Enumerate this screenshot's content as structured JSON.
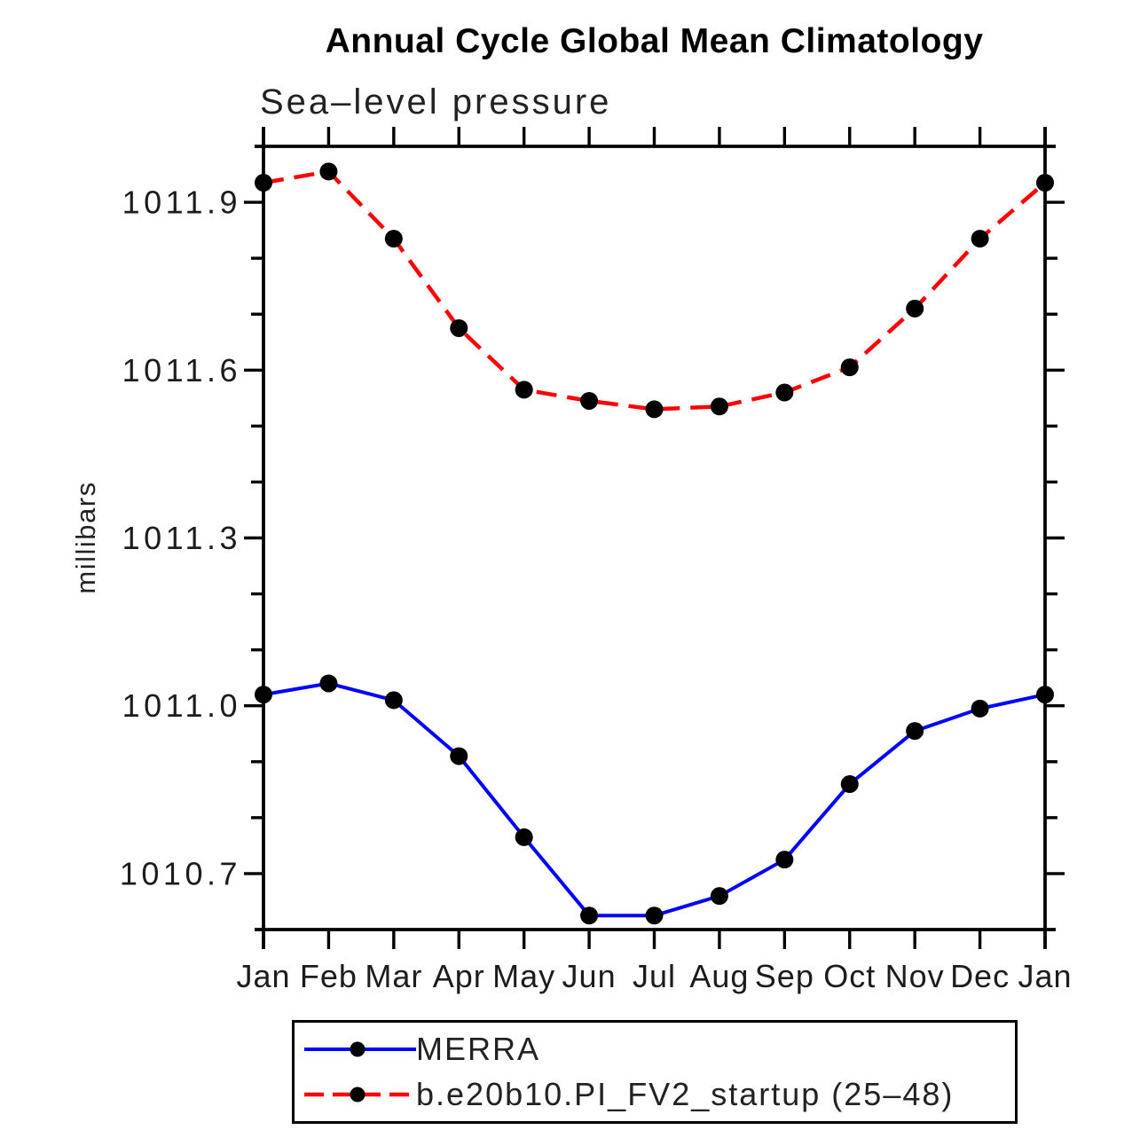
{
  "page": {
    "background": "#ffffff"
  },
  "chart_data": {
    "type": "line",
    "title": "Annual Cycle Global Mean Climatology",
    "subtitle": "Sea–level pressure",
    "ylabel": "millibars",
    "xlabel": "",
    "x_categories": [
      "Jan",
      "Feb",
      "Mar",
      "Apr",
      "May",
      "Jun",
      "Jul",
      "Aug",
      "Sep",
      "Oct",
      "Nov",
      "Dec",
      "Jan"
    ],
    "ylim": [
      1010.6,
      1012.0
    ],
    "ytick_major_values": [
      1010.7,
      1011.0,
      1011.3,
      1011.6,
      1011.9
    ],
    "ytick_major_labels": [
      "1010.7",
      "1011.0",
      "1011.3",
      "1011.6",
      "1011.9"
    ],
    "ytick_minor_step": 0.1,
    "grid": false,
    "legend_position": "bottom",
    "axis_color": "#000000",
    "series": [
      {
        "name": "MERRA",
        "color": "#0000ff",
        "style": "solid",
        "marker": "circle",
        "marker_color": "#000000",
        "values": [
          1011.02,
          1011.04,
          1011.01,
          1010.91,
          1010.765,
          1010.625,
          1010.625,
          1010.66,
          1010.725,
          1010.86,
          1010.955,
          1010.995,
          1011.02
        ]
      },
      {
        "name": "b.e20b10.PI_FV2_startup (25–48)",
        "color": "#ff0000",
        "style": "dashed",
        "marker": "circle",
        "marker_color": "#000000",
        "values": [
          1011.935,
          1011.955,
          1011.835,
          1011.675,
          1011.565,
          1011.545,
          1011.53,
          1011.535,
          1011.56,
          1011.605,
          1011.71,
          1011.835,
          1011.935
        ]
      }
    ]
  }
}
